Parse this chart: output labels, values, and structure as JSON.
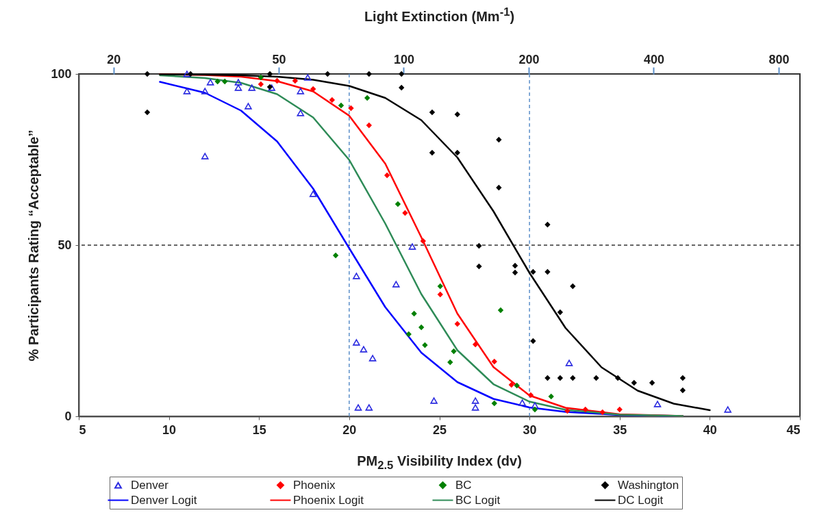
{
  "chart_data": {
    "type": "scatter",
    "xlabel": "PM$_{2.5}$ Visibility Index (dv)",
    "ylabel": "% Participants Rating “Acceptable”",
    "x2label": "Light Extinction (Mm$^{-1}$)",
    "xlim": [
      5,
      45
    ],
    "xticks": [
      5,
      10,
      15,
      20,
      25,
      30,
      35,
      40,
      45
    ],
    "ylim": [
      0,
      100
    ],
    "yticks": [
      0,
      50,
      100
    ],
    "x2lim": [
      16.5,
      900
    ],
    "x2ticks": [
      20,
      50,
      100,
      200,
      400,
      800
    ],
    "log": "x2",
    "grid": false,
    "legend": "bottom",
    "ref_lines": [
      {
        "axis": "y",
        "value": 50,
        "color": "#333333",
        "line_style": "dashed"
      },
      {
        "axis": "x",
        "value": 20,
        "color": "#5b8fc9",
        "line_style": "dashed"
      },
      {
        "axis": "x",
        "value": 30,
        "color": "#5b8fc9",
        "line_style": "dashed"
      }
    ],
    "series": [
      {
        "name": "Denver",
        "marker": "triangle",
        "color": "#2a2ae0",
        "x": [
          11.0,
          12.0,
          12.3,
          13.85,
          13.85,
          14.6,
          14.4,
          11.0,
          12.0,
          15.7,
          17.3,
          17.3,
          18.0,
          17.7,
          23.5,
          20.4,
          22.6,
          20.4,
          20.8,
          21.3,
          20.5,
          21.1,
          24.7,
          27.0,
          27.0,
          29.6,
          30.3,
          32.2,
          37.1,
          41.0
        ],
        "values": [
          95,
          95,
          97.6,
          97.6,
          96,
          96,
          90.6,
          100,
          76,
          96,
          95,
          88.6,
          65,
          99,
          49.6,
          41,
          38.6,
          21.6,
          19.6,
          17,
          2.6,
          2.6,
          4.6,
          4.6,
          2.6,
          4,
          3.2,
          15.6,
          3.6,
          2
        ]
      },
      {
        "name": "Phoenix",
        "marker": "diamond",
        "color": "#ff0000",
        "x": [
          15.1,
          16.0,
          17.0,
          18.0,
          19.05,
          20.1,
          21.1,
          22.1,
          23.1,
          24.1,
          25.05,
          26.0,
          27.0,
          28.05,
          29.0,
          30.07,
          32.1,
          33.1,
          34.05,
          35.0
        ],
        "values": [
          97,
          98,
          98,
          95.6,
          92.4,
          90,
          85,
          70.4,
          59.4,
          51.2,
          35.6,
          27,
          21,
          16,
          9.2,
          6.2,
          1.6,
          2,
          1.2,
          2
        ]
      },
      {
        "name": "BC",
        "marker": "diamond",
        "color": "#008000",
        "x": [
          12.7,
          13.1,
          15.1,
          19.55,
          21.0,
          22.7,
          19.25,
          25.05,
          23.6,
          24.0,
          23.3,
          24.2,
          25.8,
          25.6,
          28.4,
          29.3,
          28.05,
          30.3,
          31.2
        ],
        "values": [
          97.8,
          97.8,
          99,
          90.8,
          93,
          62,
          47,
          38,
          30,
          26,
          24,
          20.8,
          19,
          15.8,
          31,
          9,
          3.8,
          2,
          5.8
        ]
      },
      {
        "name": "Washington",
        "marker": "diamond",
        "color": "#000000",
        "x": [
          8.8,
          8.8,
          11.2,
          15.6,
          15.6,
          18.8,
          21.1,
          22.9,
          22.9,
          24.6,
          26.0,
          28.3,
          24.6,
          26.0,
          28.3,
          31.0,
          27.2,
          27.2,
          29.2,
          29.2,
          30.2,
          31.0,
          30.2,
          31.7,
          31.0,
          31.7,
          32.4,
          32.4,
          33.7,
          34.9,
          35.8,
          36.8,
          38.5,
          38.5
        ],
        "values": [
          100,
          88.8,
          100,
          100,
          96.2,
          100,
          100,
          100,
          96,
          88.8,
          88.2,
          80.8,
          77,
          77,
          66.8,
          56,
          49.8,
          43.8,
          44,
          42,
          42.2,
          42.2,
          22,
          30.4,
          11.2,
          11.2,
          38,
          11.2,
          11.2,
          11.2,
          9.8,
          9.8,
          11.2,
          7.6
        ]
      },
      {
        "name": "Denver Logit",
        "type": "line",
        "color": "#0000ff",
        "x": [
          9.5,
          12,
          14,
          16,
          18,
          20,
          22,
          24,
          26,
          28,
          30,
          32,
          35,
          38.5
        ],
        "values": [
          97.7,
          94.5,
          89.3,
          80.3,
          66.5,
          49.1,
          31.9,
          18.6,
          10.0,
          5.1,
          2.6,
          1.3,
          0.4,
          0.1
        ]
      },
      {
        "name": "Phoenix Logit",
        "type": "line",
        "color": "#ff0000",
        "x": [
          9.5,
          12,
          14,
          16,
          18,
          20,
          22,
          24,
          26,
          28,
          30,
          32,
          35,
          38.5
        ],
        "values": [
          99.9,
          99.7,
          99.2,
          97.9,
          94.9,
          87.8,
          73.8,
          52.3,
          30.0,
          14.4,
          6.1,
          2.5,
          0.6,
          0.1
        ]
      },
      {
        "name": "BC Logit",
        "type": "line",
        "color": "#2e8b57",
        "x": [
          9.5,
          12,
          14,
          16,
          18,
          20,
          22,
          24,
          26,
          28,
          30,
          32,
          35,
          38.5
        ],
        "values": [
          99.6,
          98.8,
          97.4,
          94.1,
          87.3,
          74.9,
          56.3,
          35.7,
          19.3,
          9.4,
          4.3,
          1.9,
          0.5,
          0.1
        ]
      },
      {
        "name": "DC Logit",
        "type": "line",
        "color": "#000000",
        "x": [
          9.5,
          12,
          14,
          16,
          18,
          20,
          22,
          24,
          26,
          28,
          30,
          32,
          34,
          36,
          38,
          40
        ],
        "values": [
          99.9,
          99.8,
          99.6,
          99.2,
          98.3,
          96.5,
          93.0,
          86.5,
          75.6,
          59.9,
          41.9,
          25.8,
          14.3,
          7.5,
          3.7,
          1.8
        ]
      }
    ]
  }
}
